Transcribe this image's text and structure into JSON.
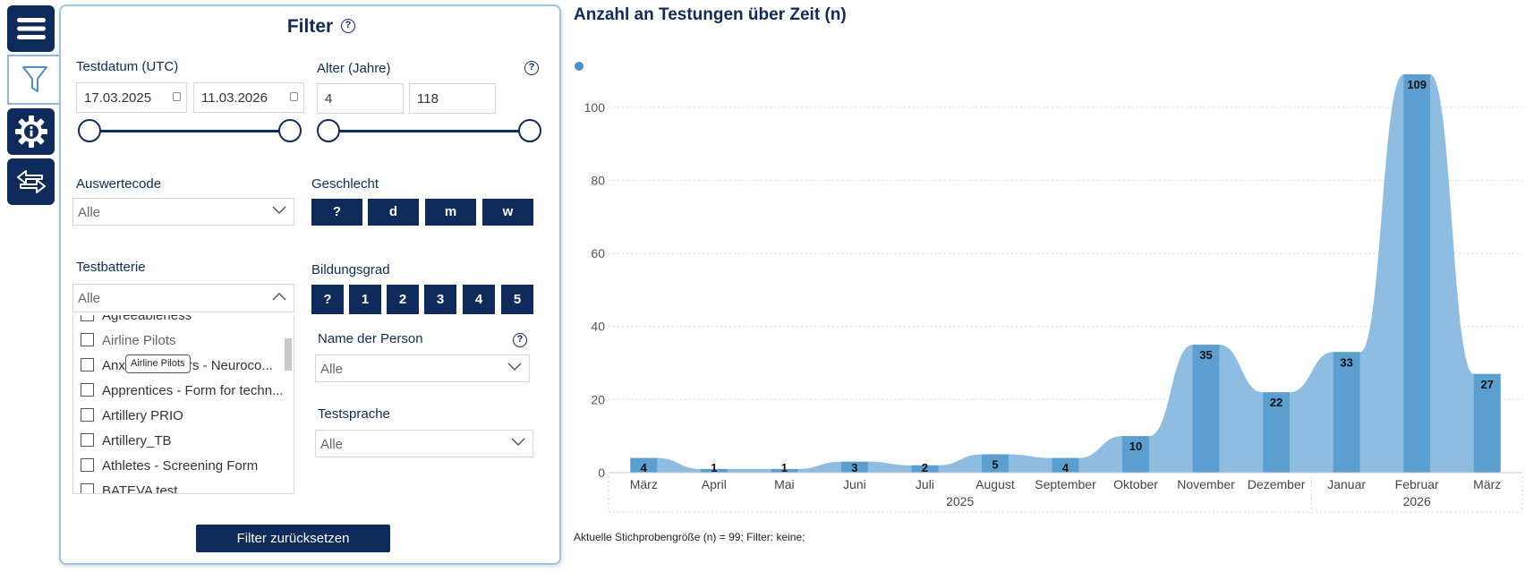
{
  "rail": {
    "items": [
      {
        "name": "menu-button",
        "icon": "hamburger-icon"
      },
      {
        "name": "filter-tab",
        "icon": "filter-icon"
      },
      {
        "name": "info-settings-button",
        "icon": "info-gear-icon"
      },
      {
        "name": "swap-button",
        "icon": "swap-arrows-icon"
      }
    ]
  },
  "filter": {
    "title": "Filter",
    "help": "?",
    "testdatum": {
      "label": "Testdatum (UTC)",
      "from": "17.03.2025",
      "to": "11.03.2026"
    },
    "alter": {
      "label": "Alter (Jahre)",
      "min": "4",
      "max": "118"
    },
    "auswertecode": {
      "label": "Auswertecode",
      "value": "Alle"
    },
    "geschlecht": {
      "label": "Geschlecht",
      "options": [
        "?",
        "d",
        "m",
        "w"
      ]
    },
    "testbatterie": {
      "label": "Testbatterie",
      "value": "Alle",
      "items": [
        "Agreeableness",
        "Airline Pilots",
        "Anxiety Clusters - Neuroco...",
        "Apprentices - Form for techn...",
        "Artillery PRIO",
        "Artillery_TB",
        "Athletes - Screening Form",
        "BATEVA test"
      ],
      "tooltip": "Airline Pilots"
    },
    "bildungsgrad": {
      "label": "Bildungsgrad",
      "options": [
        "?",
        "1",
        "2",
        "3",
        "4",
        "5"
      ]
    },
    "name_person": {
      "label": "Name der Person",
      "value": "Alle"
    },
    "testsprache": {
      "label": "Testsprache",
      "value": "Alle"
    },
    "reset_label": "Filter zurücksetzen"
  },
  "colors": {
    "navy": "#0e2b5c",
    "bar": "#5b9fd1",
    "area": "#8fbde2"
  },
  "chart_data": {
    "type": "bar",
    "title": "Anzahl an Testungen über Zeit (n)",
    "categories": [
      "März",
      "April",
      "Mai",
      "Juni",
      "Juli",
      "August",
      "September",
      "Oktober",
      "November",
      "Dezember",
      "Januar",
      "Februar",
      "März"
    ],
    "years": [
      {
        "label": "2025",
        "span": [
          0,
          9
        ]
      },
      {
        "label": "2026",
        "span": [
          10,
          12
        ]
      }
    ],
    "values": [
      4,
      1,
      1,
      3,
      2,
      5,
      4,
      10,
      35,
      22,
      33,
      109,
      27
    ],
    "yticks": [
      0,
      20,
      40,
      60,
      80,
      100
    ],
    "ylim": [
      0,
      110
    ],
    "xlabel": "",
    "ylabel": ""
  },
  "footer": "Aktuelle Stichprobengröße (n) = 99; Filter: keine;"
}
